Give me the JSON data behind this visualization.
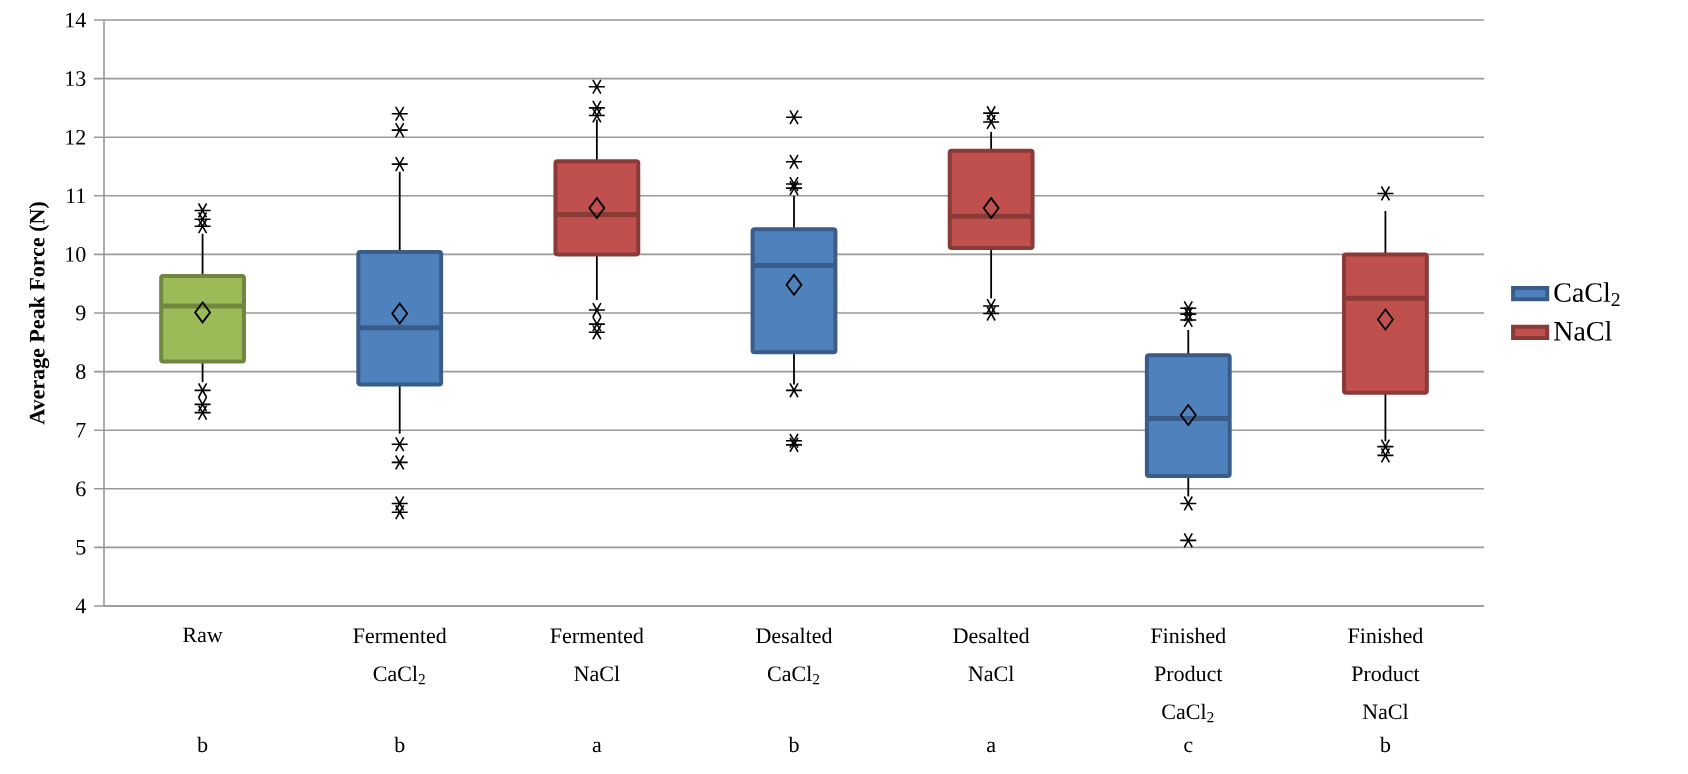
{
  "chart_data": {
    "type": "box",
    "ylabel": "Average Peak Force (N)",
    "categories": [
      "Raw",
      "Fermented CaCl$_{2}$",
      "Fermented NaCl",
      "Desalted CaCl$_{2}$",
      "Desalted NaCl",
      "Finished Product CaCl$_{2}$",
      "Finished Product NaCl"
    ],
    "series": [
      {
        "color": "#9bbb59",
        "boxes": [
          {
            "low": 7.82,
            "q1": 8.17,
            "median": 9.12,
            "q3": 9.63,
            "high": 10.35,
            "mean": 9.01,
            "outliers": [
              10.75,
              10.6,
              10.48,
              7.68,
              7.44,
              7.3
            ]
          },
          null,
          null,
          null,
          null,
          null,
          null
        ]
      },
      {
        "name": "CaCl$_{2}$",
        "color": "#4f81bd",
        "boxes": [
          null,
          {
            "low": 6.94,
            "q1": 7.78,
            "median": 8.75,
            "q3": 10.04,
            "high": 11.41,
            "mean": 8.99,
            "outliers": [
              12.4,
              12.12,
              11.54,
              6.76,
              6.45,
              5.75,
              5.6
            ]
          },
          null,
          {
            "low": 7.78,
            "q1": 8.33,
            "median": 9.81,
            "q3": 10.43,
            "high": 11.0,
            "mean": 9.48,
            "outliers": [
              12.34,
              11.58,
              11.2,
              11.13,
              7.68,
              6.82,
              6.75
            ]
          },
          null,
          {
            "low": 5.87,
            "q1": 6.22,
            "median": 7.2,
            "q3": 8.28,
            "high": 8.71,
            "mean": 7.26,
            "outliers": [
              9.08,
              8.98,
              8.88,
              5.75,
              5.12
            ]
          },
          null
        ]
      },
      {
        "name": "NaCl",
        "color": "#c0504d",
        "boxes": [
          null,
          null,
          {
            "low": 9.22,
            "q1": 10.0,
            "median": 10.68,
            "q3": 11.59,
            "high": 12.3,
            "mean": 10.79,
            "outliers": [
              12.86,
              12.5,
              12.37,
              9.05,
              8.81,
              8.67
            ]
          },
          null,
          {
            "low": 9.25,
            "q1": 10.11,
            "median": 10.65,
            "q3": 11.77,
            "high": 12.09,
            "mean": 10.79,
            "outliers": [
              12.41,
              12.26,
              9.12,
              8.99
            ]
          },
          null,
          {
            "low": 6.81,
            "q1": 7.64,
            "median": 9.25,
            "q3": 10.0,
            "high": 10.74,
            "mean": 8.89,
            "outliers": [
              11.04,
              6.72,
              6.57
            ]
          }
        ]
      }
    ],
    "ylim": [
      4,
      14
    ],
    "yticks": [
      4,
      5,
      6,
      7,
      8,
      9,
      10,
      11,
      12,
      13,
      14
    ],
    "grid": "y",
    "legend": "right",
    "annotations": [
      "b",
      "b",
      "a",
      "b",
      "a",
      "c",
      "b"
    ]
  }
}
